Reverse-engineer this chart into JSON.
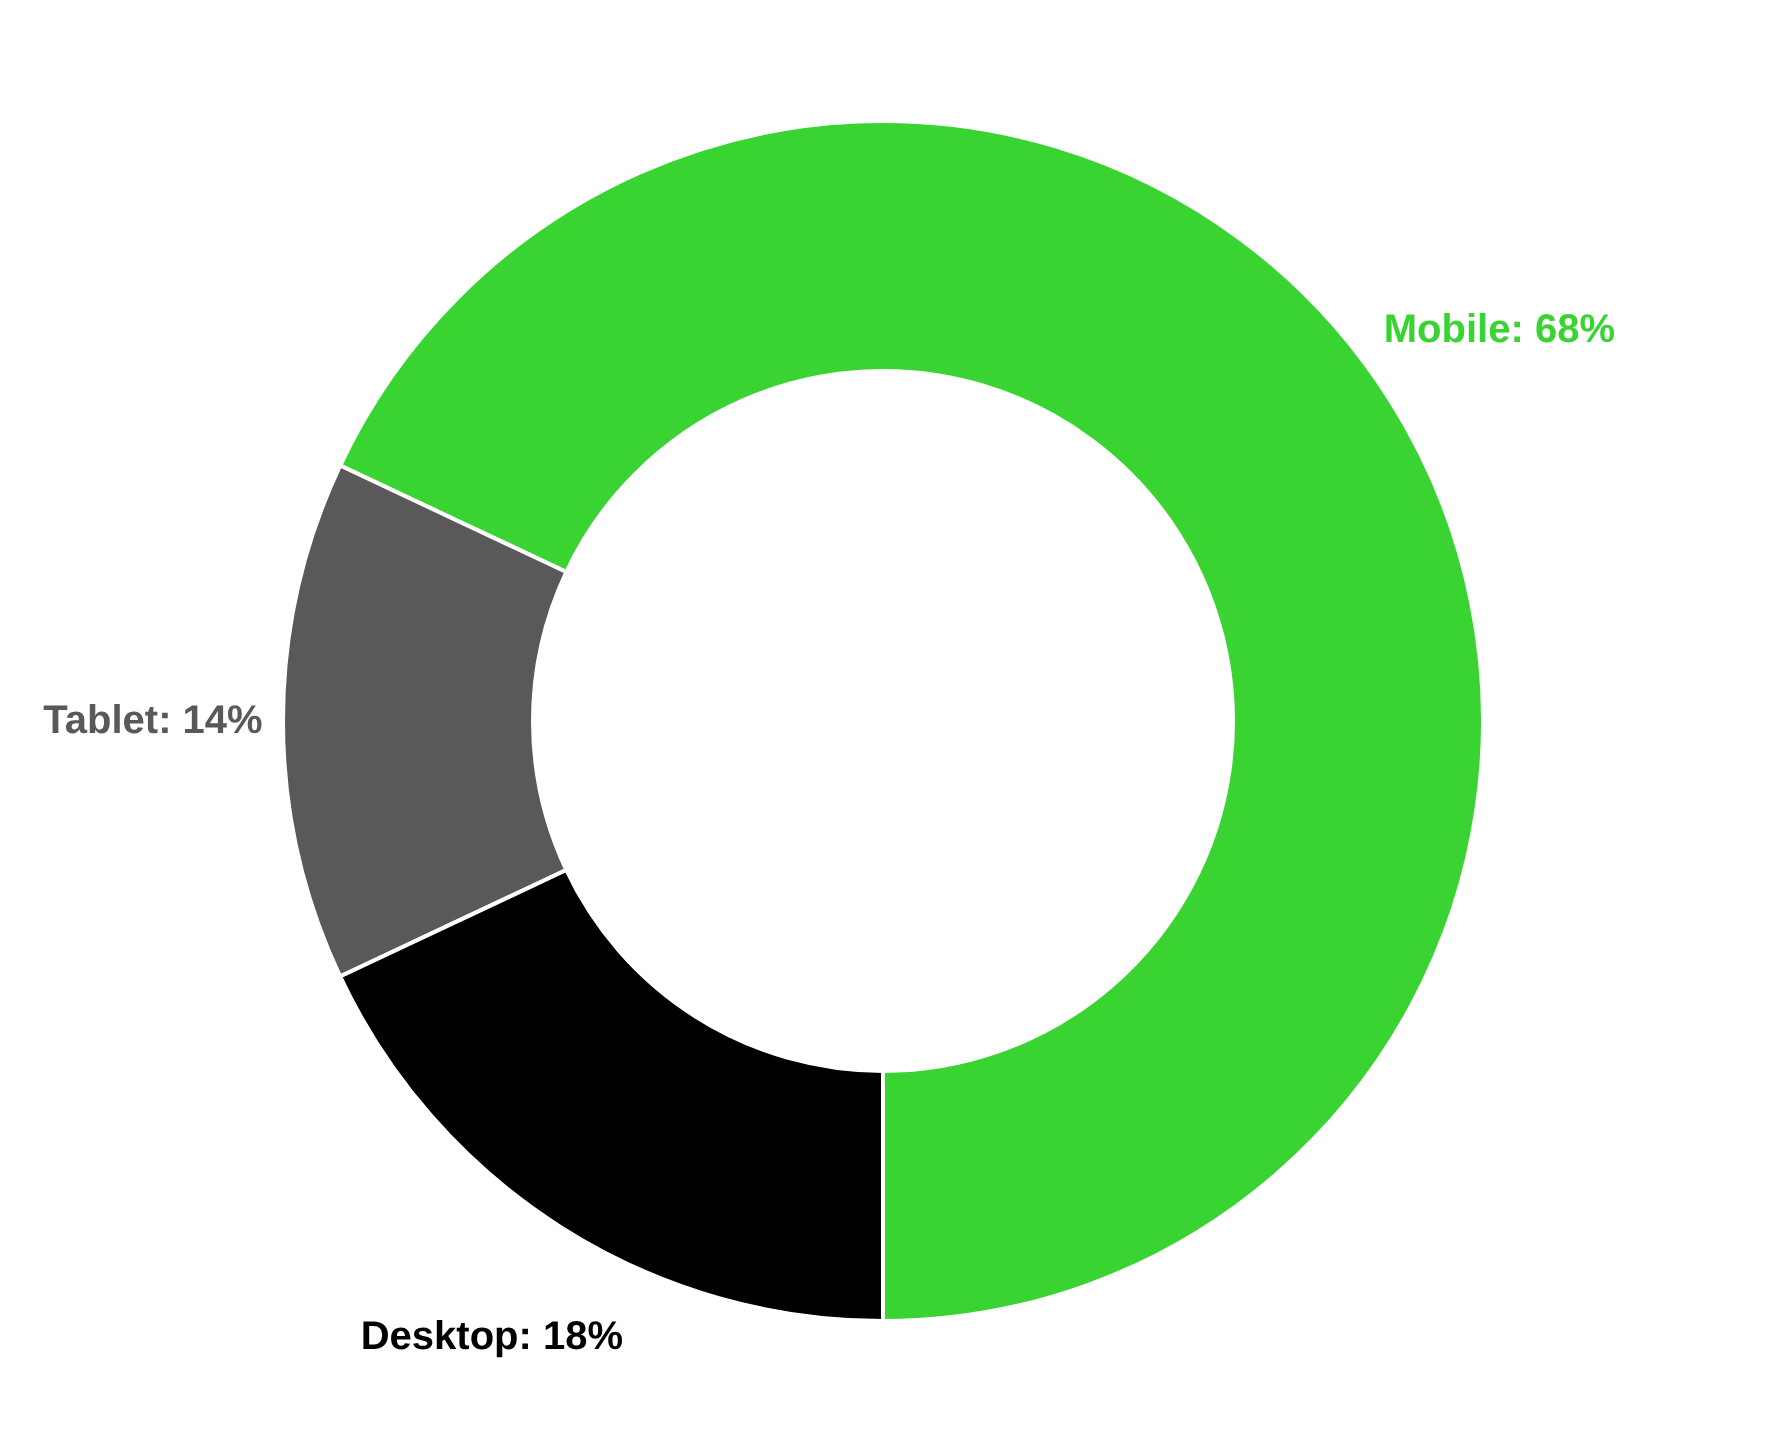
{
  "chart_data": {
    "type": "donut",
    "categories": [
      "Mobile",
      "Tablet",
      "Desktop"
    ],
    "values": [
      68,
      14,
      18
    ],
    "colors": [
      "#39d431",
      "#595959",
      "#000000"
    ],
    "value_labels": [
      "68%",
      "14%",
      "18%"
    ],
    "legend": false
  }
}
